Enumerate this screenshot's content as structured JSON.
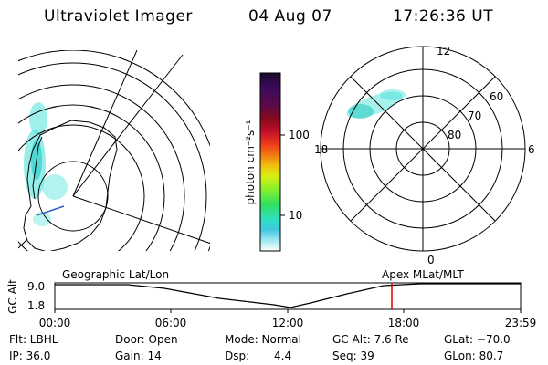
{
  "header": {
    "title": "Ultraviolet Imager",
    "date": "04 Aug 07",
    "time": "17:26:36 UT"
  },
  "colorbar": {
    "unit_label": "photon cm⁻²s⁻¹",
    "ticks": [
      "100",
      "10"
    ],
    "colors": [
      "#1a0a2a",
      "#3a0a5a",
      "#5a0a4a",
      "#8a0a1a",
      "#c0102a",
      "#f03a1a",
      "#f07a10",
      "#f0c010",
      "#d8f010",
      "#80f030",
      "#30e060",
      "#30e0c0",
      "#40c8e0",
      "#a0e8f0",
      "#ffffff"
    ]
  },
  "geographic": {
    "label": "Geographic Lat/Lon"
  },
  "apex": {
    "label": "Apex MLat/MLT",
    "mlt_labels": {
      "top": "12",
      "left": "18",
      "right": "6",
      "bottom": "0"
    },
    "lat_labels": [
      "60",
      "70",
      "80"
    ]
  },
  "altitude_plot": {
    "axis_label": "GC Alt",
    "y_ticks": [
      "9.0",
      "1.8"
    ],
    "x_ticks": [
      "00:00",
      "06:00",
      "12:00",
      "18:00",
      "23:59"
    ],
    "current_marker_color": "#dd0000"
  },
  "info": {
    "row1": {
      "filter": "Flt: LBHL",
      "door": "Door: Open",
      "mode": "Mode: Normal",
      "gc_alt": "GC Alt: 7.6 Re",
      "glat": "GLat: −70.0"
    },
    "row2": {
      "ip": "IP: 36.0",
      "gain": "Gain: 14",
      "dsp_label": "Dsp:",
      "dsp_value": "4.4",
      "seq": "Seq: 39",
      "glon": "GLon: 80.7"
    }
  }
}
